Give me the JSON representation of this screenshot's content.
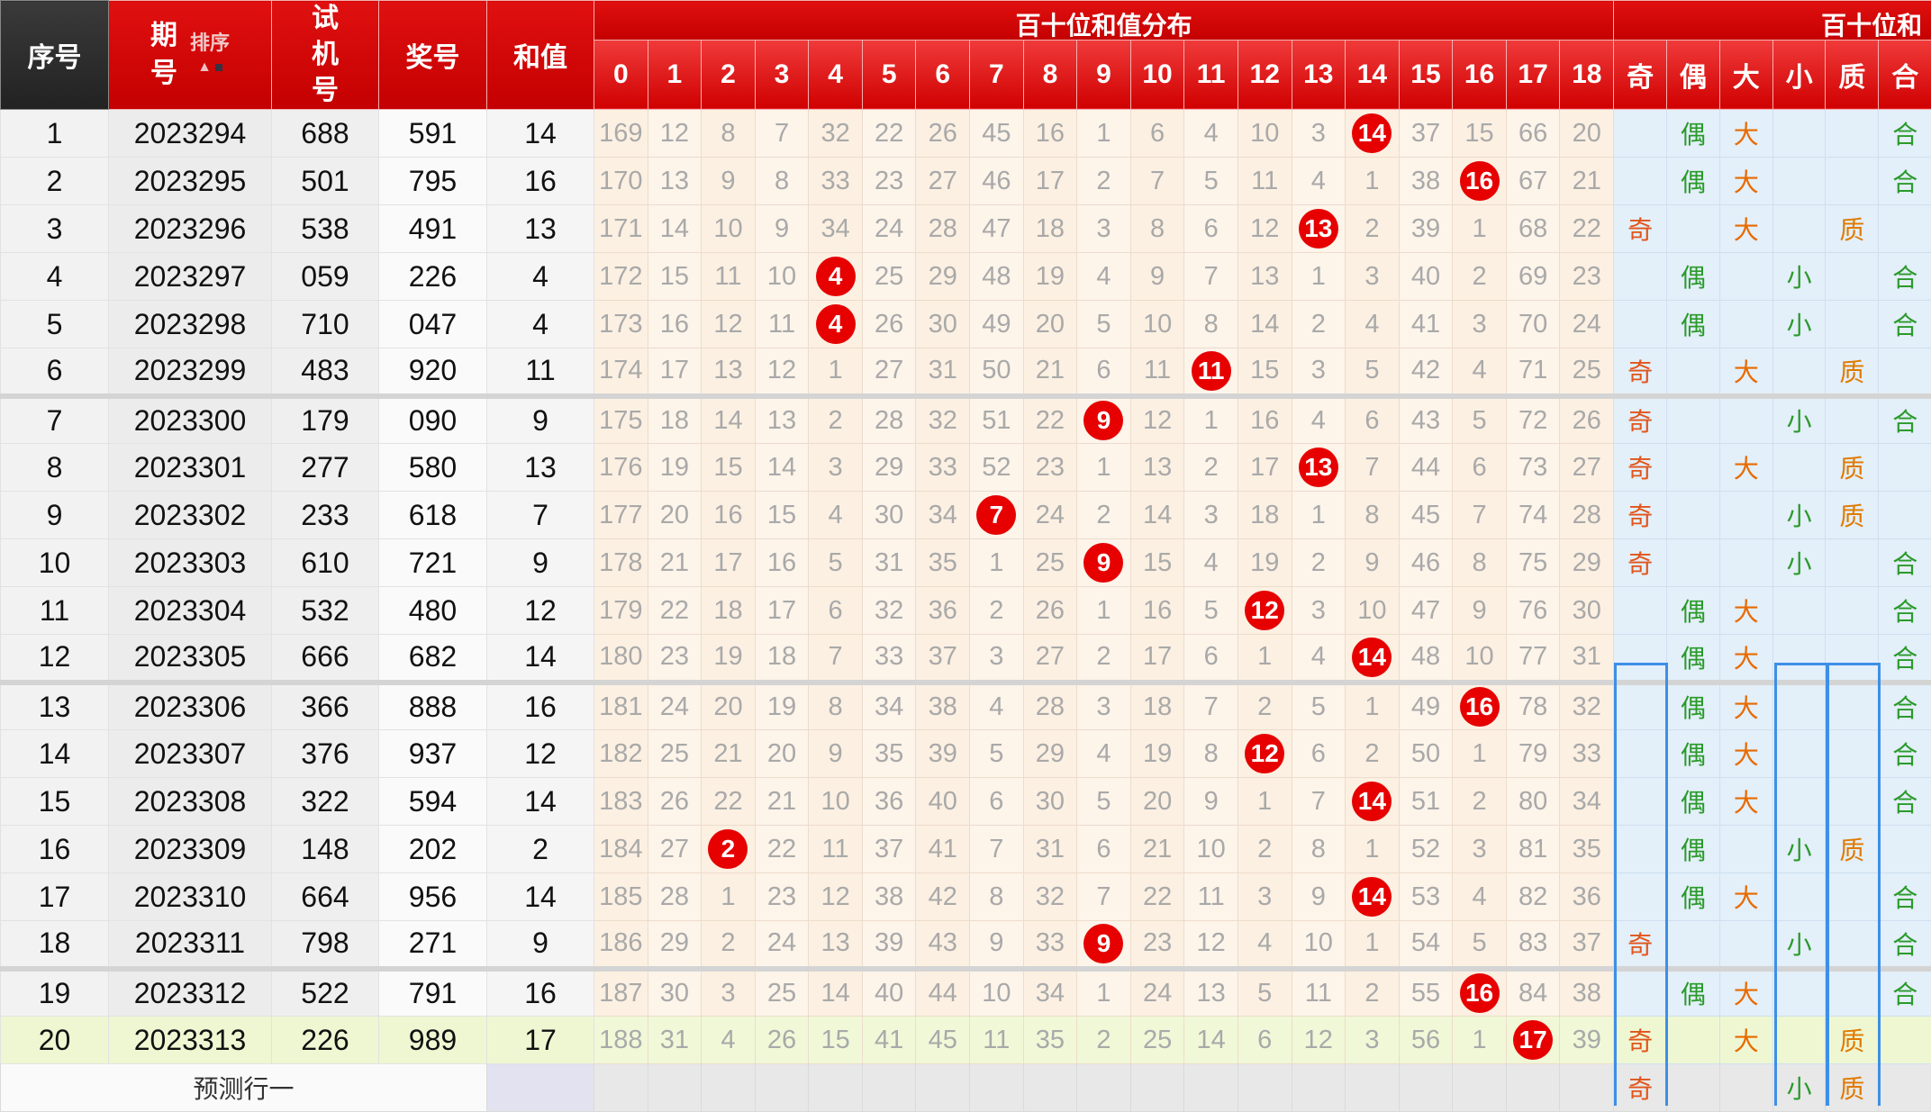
{
  "header": {
    "seq": "序号",
    "issue_top": "期",
    "issue_bottom": "号",
    "sort_label": "排序",
    "sort_icon": "up-arrow-icon",
    "test": "试机号",
    "prize": "奖号",
    "sum": "和值",
    "dist_title": "百十位和值分布",
    "form_title": "百十位和",
    "dist_cols": [
      "0",
      "1",
      "2",
      "3",
      "4",
      "5",
      "6",
      "7",
      "8",
      "9",
      "10",
      "11",
      "12",
      "13",
      "14",
      "15",
      "16",
      "17",
      "18"
    ],
    "form_cols": [
      "奇",
      "偶",
      "大",
      "小",
      "质",
      "合"
    ]
  },
  "colors": {
    "header_red": "#d40000",
    "hit_ball": "#e60000",
    "odd": "#e2541a",
    "even": "#2a9a2a",
    "highlight_row": "#eef7d2",
    "selection_box": "#3d8fe8"
  },
  "rows": [
    {
      "seq": "1",
      "issue": "2023294",
      "test": "688",
      "prize": "591",
      "sum": "14",
      "dist": [
        "169",
        "12",
        "8",
        "7",
        "32",
        "22",
        "26",
        "45",
        "16",
        "1",
        "6",
        "4",
        "10",
        "3",
        "14",
        "37",
        "15",
        "66",
        "20"
      ],
      "form": [
        "",
        "偶",
        "大",
        "",
        "",
        "合"
      ]
    },
    {
      "seq": "2",
      "issue": "2023295",
      "test": "501",
      "prize": "795",
      "sum": "16",
      "dist": [
        "170",
        "13",
        "9",
        "8",
        "33",
        "23",
        "27",
        "46",
        "17",
        "2",
        "7",
        "5",
        "11",
        "4",
        "1",
        "38",
        "16",
        "67",
        "21"
      ],
      "form": [
        "",
        "偶",
        "大",
        "",
        "",
        "合"
      ]
    },
    {
      "seq": "3",
      "issue": "2023296",
      "test": "538",
      "prize": "491",
      "sum": "13",
      "dist": [
        "171",
        "14",
        "10",
        "9",
        "34",
        "24",
        "28",
        "47",
        "18",
        "3",
        "8",
        "6",
        "12",
        "13",
        "2",
        "39",
        "1",
        "68",
        "22"
      ],
      "form": [
        "奇",
        "",
        "大",
        "",
        "质",
        ""
      ]
    },
    {
      "seq": "4",
      "issue": "2023297",
      "test": "059",
      "prize": "226",
      "sum": "4",
      "dist": [
        "172",
        "15",
        "11",
        "10",
        "4",
        "25",
        "29",
        "48",
        "19",
        "4",
        "9",
        "7",
        "13",
        "1",
        "3",
        "40",
        "2",
        "69",
        "23"
      ],
      "form": [
        "",
        "偶",
        "",
        "小",
        "",
        "合"
      ]
    },
    {
      "seq": "5",
      "issue": "2023298",
      "test": "710",
      "prize": "047",
      "sum": "4",
      "dist": [
        "173",
        "16",
        "12",
        "11",
        "4",
        "26",
        "30",
        "49",
        "20",
        "5",
        "10",
        "8",
        "14",
        "2",
        "4",
        "41",
        "3",
        "70",
        "24"
      ],
      "form": [
        "",
        "偶",
        "",
        "小",
        "",
        "合"
      ]
    },
    {
      "seq": "6",
      "issue": "2023299",
      "test": "483",
      "prize": "920",
      "sum": "11",
      "dist": [
        "174",
        "17",
        "13",
        "12",
        "1",
        "27",
        "31",
        "50",
        "21",
        "6",
        "11",
        "11",
        "15",
        "3",
        "5",
        "42",
        "4",
        "71",
        "25"
      ],
      "form": [
        "奇",
        "",
        "大",
        "",
        "质",
        ""
      ]
    },
    {
      "seq": "7",
      "issue": "2023300",
      "test": "179",
      "prize": "090",
      "sum": "9",
      "dist": [
        "175",
        "18",
        "14",
        "13",
        "2",
        "28",
        "32",
        "51",
        "22",
        "9",
        "12",
        "1",
        "16",
        "4",
        "6",
        "43",
        "5",
        "72",
        "26"
      ],
      "form": [
        "奇",
        "",
        "",
        "小",
        "",
        "合"
      ]
    },
    {
      "seq": "8",
      "issue": "2023301",
      "test": "277",
      "prize": "580",
      "sum": "13",
      "dist": [
        "176",
        "19",
        "15",
        "14",
        "3",
        "29",
        "33",
        "52",
        "23",
        "1",
        "13",
        "2",
        "17",
        "13",
        "7",
        "44",
        "6",
        "73",
        "27"
      ],
      "form": [
        "奇",
        "",
        "大",
        "",
        "质",
        ""
      ]
    },
    {
      "seq": "9",
      "issue": "2023302",
      "test": "233",
      "prize": "618",
      "sum": "7",
      "dist": [
        "177",
        "20",
        "16",
        "15",
        "4",
        "30",
        "34",
        "7",
        "24",
        "2",
        "14",
        "3",
        "18",
        "1",
        "8",
        "45",
        "7",
        "74",
        "28"
      ],
      "form": [
        "奇",
        "",
        "",
        "小",
        "质",
        ""
      ]
    },
    {
      "seq": "10",
      "issue": "2023303",
      "test": "610",
      "prize": "721",
      "sum": "9",
      "dist": [
        "178",
        "21",
        "17",
        "16",
        "5",
        "31",
        "35",
        "1",
        "25",
        "9",
        "15",
        "4",
        "19",
        "2",
        "9",
        "46",
        "8",
        "75",
        "29"
      ],
      "form": [
        "奇",
        "",
        "",
        "小",
        "",
        "合"
      ]
    },
    {
      "seq": "11",
      "issue": "2023304",
      "test": "532",
      "prize": "480",
      "sum": "12",
      "dist": [
        "179",
        "22",
        "18",
        "17",
        "6",
        "32",
        "36",
        "2",
        "26",
        "1",
        "16",
        "5",
        "12",
        "3",
        "10",
        "47",
        "9",
        "76",
        "30"
      ],
      "form": [
        "",
        "偶",
        "大",
        "",
        "",
        "合"
      ]
    },
    {
      "seq": "12",
      "issue": "2023305",
      "test": "666",
      "prize": "682",
      "sum": "14",
      "dist": [
        "180",
        "23",
        "19",
        "18",
        "7",
        "33",
        "37",
        "3",
        "27",
        "2",
        "17",
        "6",
        "1",
        "4",
        "14",
        "48",
        "10",
        "77",
        "31"
      ],
      "form": [
        "",
        "偶",
        "大",
        "",
        "",
        "合"
      ]
    },
    {
      "seq": "13",
      "issue": "2023306",
      "test": "366",
      "prize": "888",
      "sum": "16",
      "dist": [
        "181",
        "24",
        "20",
        "19",
        "8",
        "34",
        "38",
        "4",
        "28",
        "3",
        "18",
        "7",
        "2",
        "5",
        "1",
        "49",
        "16",
        "78",
        "32"
      ],
      "form": [
        "",
        "偶",
        "大",
        "",
        "",
        "合"
      ]
    },
    {
      "seq": "14",
      "issue": "2023307",
      "test": "376",
      "prize": "937",
      "sum": "12",
      "dist": [
        "182",
        "25",
        "21",
        "20",
        "9",
        "35",
        "39",
        "5",
        "29",
        "4",
        "19",
        "8",
        "12",
        "6",
        "2",
        "50",
        "1",
        "79",
        "33"
      ],
      "form": [
        "",
        "偶",
        "大",
        "",
        "",
        "合"
      ]
    },
    {
      "seq": "15",
      "issue": "2023308",
      "test": "322",
      "prize": "594",
      "sum": "14",
      "dist": [
        "183",
        "26",
        "22",
        "21",
        "10",
        "36",
        "40",
        "6",
        "30",
        "5",
        "20",
        "9",
        "1",
        "7",
        "14",
        "51",
        "2",
        "80",
        "34"
      ],
      "form": [
        "",
        "偶",
        "大",
        "",
        "",
        "合"
      ]
    },
    {
      "seq": "16",
      "issue": "2023309",
      "test": "148",
      "prize": "202",
      "sum": "2",
      "dist": [
        "184",
        "27",
        "2",
        "22",
        "11",
        "37",
        "41",
        "7",
        "31",
        "6",
        "21",
        "10",
        "2",
        "8",
        "1",
        "52",
        "3",
        "81",
        "35"
      ],
      "form": [
        "",
        "偶",
        "",
        "小",
        "质",
        ""
      ]
    },
    {
      "seq": "17",
      "issue": "2023310",
      "test": "664",
      "prize": "956",
      "sum": "14",
      "dist": [
        "185",
        "28",
        "1",
        "23",
        "12",
        "38",
        "42",
        "8",
        "32",
        "7",
        "22",
        "11",
        "3",
        "9",
        "14",
        "53",
        "4",
        "82",
        "36"
      ],
      "form": [
        "",
        "偶",
        "大",
        "",
        "",
        "合"
      ]
    },
    {
      "seq": "18",
      "issue": "2023311",
      "test": "798",
      "prize": "271",
      "sum": "9",
      "dist": [
        "186",
        "29",
        "2",
        "24",
        "13",
        "39",
        "43",
        "9",
        "33",
        "9",
        "23",
        "12",
        "4",
        "10",
        "1",
        "54",
        "5",
        "83",
        "37"
      ],
      "form": [
        "奇",
        "",
        "",
        "小",
        "",
        "合"
      ]
    },
    {
      "seq": "19",
      "issue": "2023312",
      "test": "522",
      "prize": "791",
      "sum": "16",
      "dist": [
        "187",
        "30",
        "3",
        "25",
        "14",
        "40",
        "44",
        "10",
        "34",
        "1",
        "24",
        "13",
        "5",
        "11",
        "2",
        "55",
        "16",
        "84",
        "38"
      ],
      "form": [
        "",
        "偶",
        "大",
        "",
        "",
        "合"
      ]
    },
    {
      "seq": "20",
      "issue": "2023313",
      "test": "226",
      "prize": "989",
      "sum": "17",
      "dist": [
        "188",
        "31",
        "4",
        "26",
        "15",
        "41",
        "45",
        "11",
        "35",
        "2",
        "25",
        "14",
        "6",
        "12",
        "3",
        "56",
        "1",
        "17",
        "39"
      ],
      "form": [
        "奇",
        "",
        "大",
        "",
        "质",
        ""
      ]
    }
  ],
  "prediction": {
    "label": "预测行一",
    "form": [
      "奇",
      "",
      "",
      "小",
      "质",
      ""
    ]
  }
}
